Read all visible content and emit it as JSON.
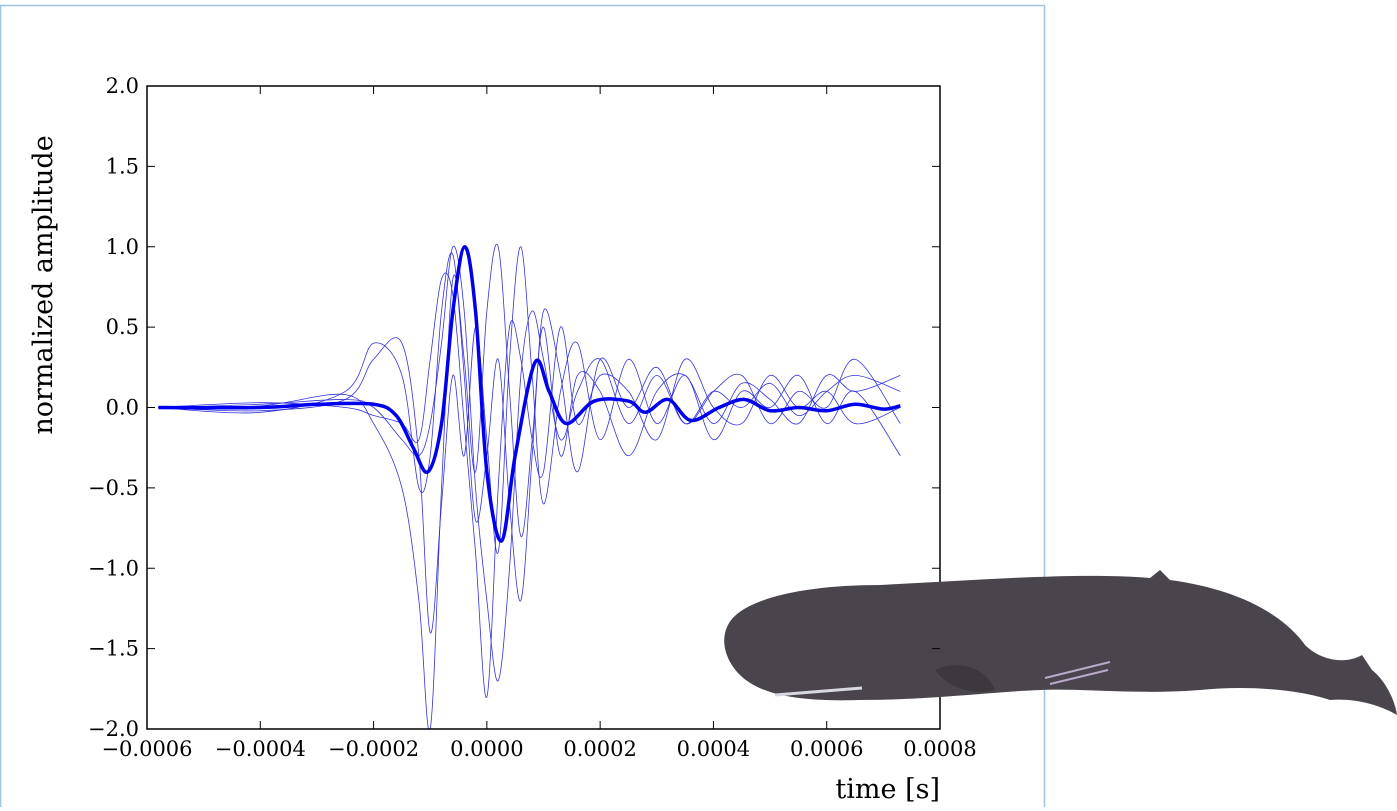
{
  "chart_data": {
    "type": "line",
    "xlabel": "time [s]",
    "ylabel": "normalized amplitude",
    "xlim": [
      -0.0006,
      0.0008
    ],
    "ylim": [
      -2.0,
      2.0
    ],
    "xticks": [
      {
        "value": -0.0006,
        "label": "−0.0006"
      },
      {
        "value": -0.0004,
        "label": "−0.0004"
      },
      {
        "value": -0.0002,
        "label": "−0.0002"
      },
      {
        "value": 0,
        "label": "0.0000"
      },
      0.0002,
      0.0004,
      0.0006,
      0.0008
    ],
    "yticks": [
      {
        "value": -2,
        "label": "−2.0"
      },
      {
        "value": -1.5,
        "label": "−1.5"
      },
      {
        "value": -1,
        "label": "−1.0"
      },
      {
        "value": -0.5,
        "label": "−0.5"
      },
      {
        "value": 0,
        "label": "0.0"
      },
      0.5,
      {
        "value": 1,
        "label": "1.0"
      },
      1.5,
      {
        "value": 2,
        "label": "2.0"
      }
    ],
    "grid": false,
    "series": [
      {
        "color": "#3333dd",
        "width": 0.8,
        "x": [
          -0.00058,
          -0.0004,
          -0.00025,
          -0.0002,
          -0.00015,
          -0.00012,
          -0.0001,
          -8e-05,
          -6e-05,
          -4e-05,
          -2e-05,
          0,
          2e-05,
          4e-05,
          6e-05,
          8e-05,
          0.0001,
          0.00013,
          0.00016,
          0.0002,
          0.00025,
          0.0003,
          0.00035,
          0.0004,
          0.00045,
          0.0005,
          0.00055,
          0.0006,
          0.00065,
          0.00073
        ],
        "values": [
          0,
          0.02,
          0.05,
          0,
          -0.2,
          -0.3,
          -0.1,
          0.4,
          1.0,
          0.6,
          -0.5,
          -1.2,
          -1.7,
          -1.0,
          0.2,
          0.6,
          0.3,
          -0.2,
          0.1,
          0.3,
          -0.1,
          0.2,
          -0.1,
          0.1,
          0,
          0.15,
          -0.05,
          0.1,
          0.2,
          0.1
        ]
      },
      {
        "color": "#3333dd",
        "width": 0.8,
        "x": [
          -0.00058,
          -0.0004,
          -0.00025,
          -0.0002,
          -0.00015,
          -0.00012,
          -0.0001,
          -8e-05,
          -6e-05,
          -4e-05,
          -2e-05,
          0,
          2e-05,
          4e-05,
          6e-05,
          8e-05,
          0.0001,
          0.00013,
          0.00016,
          0.0002,
          0.00025,
          0.0003,
          0.00035,
          0.0004,
          0.00045,
          0.0005,
          0.00055,
          0.0006,
          0.00065,
          0.00073
        ],
        "values": [
          0,
          -0.02,
          0.05,
          0.3,
          0.4,
          -0.3,
          -1.4,
          -0.6,
          0.2,
          -0.3,
          0.5,
          -0.2,
          -0.9,
          0.3,
          1.0,
          0.2,
          -0.6,
          0.1,
          0.4,
          -0.2,
          0.3,
          -0.1,
          0.2,
          -0.2,
          0.1,
          0,
          0.2,
          -0.1,
          0.1,
          -0.3
        ]
      },
      {
        "color": "#3333dd",
        "width": 0.8,
        "x": [
          -0.00058,
          -0.0004,
          -0.00025,
          -0.0002,
          -0.00015,
          -0.00012,
          -0.0001,
          -8e-05,
          -6e-05,
          -4e-05,
          -2e-05,
          0,
          2e-05,
          4e-05,
          6e-05,
          8e-05,
          0.0001,
          0.00013,
          0.00016,
          0.0002,
          0.00025,
          0.0003,
          0.00035,
          0.0004,
          0.00045,
          0.0005,
          0.00055,
          0.0006,
          0.00065,
          0.00073
        ],
        "values": [
          0,
          0.01,
          0.08,
          -0.1,
          -0.5,
          -1.2,
          -2.0,
          -0.5,
          0.8,
          0.3,
          -0.4,
          0.6,
          1.0,
          0.1,
          -0.8,
          -0.2,
          0.5,
          -0.3,
          0.2,
          0.1,
          -0.3,
          0.1,
          0.2,
          -0.1,
          0.15,
          0.05,
          -0.1,
          0.2,
          0.1,
          0.2
        ]
      },
      {
        "color": "#3333dd",
        "width": 0.8,
        "x": [
          -0.00058,
          -0.0004,
          -0.00025,
          -0.0002,
          -0.00015,
          -0.00012,
          -0.0001,
          -8e-05,
          -6e-05,
          -4e-05,
          -2e-05,
          0,
          2e-05,
          4e-05,
          6e-05,
          8e-05,
          0.0001,
          0.00013,
          0.00016,
          0.0002,
          0.00025,
          0.0003,
          0.00035,
          0.0004,
          0.00045,
          0.0005,
          0.00055,
          0.0006,
          0.00065,
          0.00073
        ],
        "values": [
          0,
          0.03,
          0,
          -0.05,
          -0.1,
          -0.2,
          0.3,
          0.8,
          0.7,
          -0.1,
          -0.9,
          -1.8,
          -0.5,
          0.5,
          0.3,
          -0.2,
          -0.4,
          0.5,
          -0.1,
          0.2,
          0.1,
          -0.2,
          0.3,
          0,
          -0.1,
          0.2,
          0,
          0.1,
          -0.1,
          0
        ]
      },
      {
        "color": "#3333dd",
        "width": 0.8,
        "x": [
          -0.00058,
          -0.0004,
          -0.00025,
          -0.0002,
          -0.00015,
          -0.00012,
          -0.0001,
          -8e-05,
          -6e-05,
          -4e-05,
          -2e-05,
          0,
          2e-05,
          4e-05,
          6e-05,
          8e-05,
          0.0001,
          0.00013,
          0.00016,
          0.0002,
          0.00025,
          0.0003,
          0.00035,
          0.0004,
          0.00045,
          0.0005,
          0.00055,
          0.0006,
          0.00065,
          0.00073
        ],
        "values": [
          0,
          -0.03,
          0.1,
          0.4,
          0.2,
          -0.5,
          -0.3,
          0.6,
          0.95,
          0.2,
          -0.7,
          -0.3,
          0.3,
          -0.6,
          -1.2,
          -0.3,
          0.6,
          0.2,
          -0.4,
          0.3,
          0,
          0.25,
          -0.1,
          0.1,
          0.2,
          -0.1,
          0.1,
          0,
          0.3,
          -0.1
        ]
      },
      {
        "color": "#0000ee",
        "width": 3.5,
        "x": [
          -0.00058,
          -0.0004,
          -0.0003,
          -0.0002,
          -0.00016,
          -0.00013,
          -0.000104,
          -8e-05,
          -6e-05,
          -3.9e-05,
          -2e-05,
          0,
          2.6e-05,
          5e-05,
          8.5e-05,
          0.00011,
          0.00014,
          0.00019,
          0.00025,
          0.00028,
          0.00032,
          0.00036,
          0.00041,
          0.000455,
          0.0005,
          0.00055,
          0.0006,
          0.00065,
          0.0007,
          0.00073
        ],
        "values": [
          0,
          0.0,
          0.02,
          0.02,
          -0.05,
          -0.25,
          -0.4,
          -0.1,
          0.6,
          1.0,
          0.6,
          -0.4,
          -0.83,
          -0.3,
          0.28,
          0.1,
          -0.1,
          0.04,
          0.04,
          -0.03,
          0.05,
          -0.08,
          0,
          0.05,
          -0.02,
          0,
          -0.02,
          0.02,
          -0.01,
          0.01
        ]
      }
    ]
  }
}
